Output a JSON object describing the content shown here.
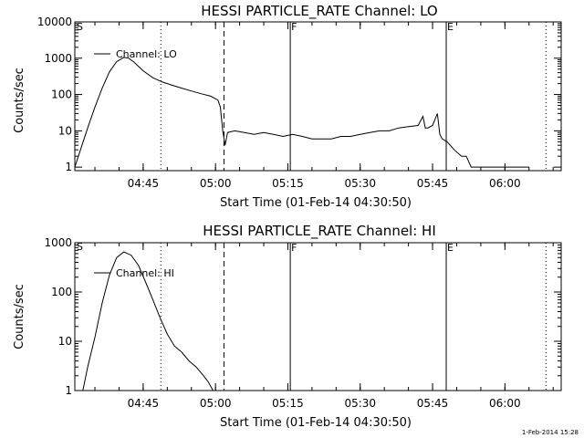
{
  "footer": "1-Feb-2014 15:28",
  "chart_data": [
    {
      "type": "line",
      "title": "HESSI PARTICLE_RATE Channel: LO",
      "xlabel": "Start Time (01-Feb-14 04:30:50)",
      "ylabel": "Counts/sec",
      "yscale": "log",
      "ylim": [
        0.8,
        10000
      ],
      "yticks": [
        1,
        10,
        100,
        1000,
        10000
      ],
      "ytick_labels": [
        "1",
        "10",
        "100",
        "1000",
        "10000"
      ],
      "xlim": [
        "04:30:50",
        "06:11:40"
      ],
      "xticks": [
        "04:45",
        "05:00",
        "05:15",
        "05:30",
        "05:45",
        "06:00"
      ],
      "legend": "top-left",
      "series": [
        {
          "name": "Channel: LO",
          "x": [
            "04:30:50",
            "04:32:00",
            "04:33:30",
            "04:35:00",
            "04:36:30",
            "04:38:00",
            "04:39:30",
            "04:41:00",
            "04:42:00",
            "04:43:00",
            "04:45:00",
            "04:47:00",
            "04:49:00",
            "04:51:00",
            "04:53:00",
            "04:55:00",
            "04:57:00",
            "04:59:00",
            "05:00:30",
            "05:01:00",
            "05:01:30",
            "05:02:00",
            "05:02:30",
            "05:04:00",
            "05:06:00",
            "05:08:00",
            "05:10:00",
            "05:12:00",
            "05:14:00",
            "05:16:00",
            "05:18:00",
            "05:20:00",
            "05:22:00",
            "05:24:00",
            "05:26:00",
            "05:28:00",
            "05:30:00",
            "05:32:00",
            "05:34:00",
            "05:36:00",
            "05:38:00",
            "05:40:00",
            "05:42:00",
            "05:43:00",
            "05:43:30",
            "05:44:00",
            "05:45:00",
            "05:46:00",
            "05:46:30",
            "05:47:00",
            "05:48:00",
            "05:49:30",
            "05:51:00",
            "05:52:00",
            "05:53:00",
            "05:54:00",
            "05:55:00",
            "05:56:00",
            "05:57:00",
            "05:58:00",
            "05:59:00",
            "06:00:00",
            "06:01:00",
            "06:02:00",
            "06:03:00",
            "06:04:00",
            "06:05:00"
          ],
          "y": [
            1,
            3,
            12,
            45,
            150,
            420,
            800,
            1050,
            1000,
            800,
            450,
            290,
            220,
            180,
            150,
            125,
            105,
            90,
            70,
            45,
            10,
            4,
            9,
            10,
            9,
            8,
            9,
            8,
            7,
            8,
            7,
            6,
            6,
            6,
            7,
            7,
            8,
            9,
            10,
            10,
            12,
            13,
            14,
            25,
            12,
            12,
            14,
            30,
            8,
            6,
            5,
            3,
            2,
            2,
            1,
            1,
            1,
            1,
            1,
            1,
            1,
            1,
            1,
            1,
            1,
            1,
            1
          ]
        }
      ],
      "vlines": [
        {
          "x": "04:48:40",
          "style": "dotted"
        },
        {
          "x": "05:01:45",
          "style": "dashed"
        },
        {
          "x": "05:15:30",
          "style": "solid",
          "label": "F"
        },
        {
          "x": "05:47:50",
          "style": "solid",
          "label": "E"
        },
        {
          "x": "06:08:30",
          "style": "dotted"
        }
      ],
      "corner_label": "S"
    },
    {
      "type": "line",
      "title": "HESSI PARTICLE_RATE Channel: HI",
      "xlabel": "Start Time (01-Feb-14 04:30:50)",
      "ylabel": "Counts/sec",
      "yscale": "log",
      "ylim": [
        1,
        1000
      ],
      "yticks": [
        1,
        10,
        100,
        1000
      ],
      "ytick_labels": [
        "1",
        "10",
        "100",
        "1000"
      ],
      "xlim": [
        "04:30:50",
        "06:11:40"
      ],
      "xticks": [
        "04:45",
        "05:00",
        "05:15",
        "05:30",
        "05:45",
        "06:00"
      ],
      "legend": "top-left",
      "series": [
        {
          "name": "Channel: HI",
          "x": [
            "04:32:30",
            "04:33:30",
            "04:35:00",
            "04:36:30",
            "04:38:00",
            "04:39:30",
            "04:41:00",
            "04:42:30",
            "04:44:00",
            "04:45:30",
            "04:47:00",
            "04:48:30",
            "04:50:00",
            "04:51:30",
            "04:53:00",
            "04:54:30",
            "04:56:00",
            "04:57:30",
            "04:58:30",
            "04:59:30"
          ],
          "y": [
            1,
            3,
            12,
            60,
            220,
            500,
            650,
            560,
            350,
            160,
            70,
            30,
            14,
            8,
            6,
            4,
            3,
            2,
            1.5,
            1
          ]
        }
      ],
      "vlines": [
        {
          "x": "04:48:40",
          "style": "dotted"
        },
        {
          "x": "05:01:45",
          "style": "dashed"
        },
        {
          "x": "05:15:30",
          "style": "solid",
          "label": "F"
        },
        {
          "x": "05:47:50",
          "style": "solid",
          "label": "E"
        },
        {
          "x": "06:08:30",
          "style": "dotted"
        }
      ],
      "corner_label": "S"
    }
  ]
}
